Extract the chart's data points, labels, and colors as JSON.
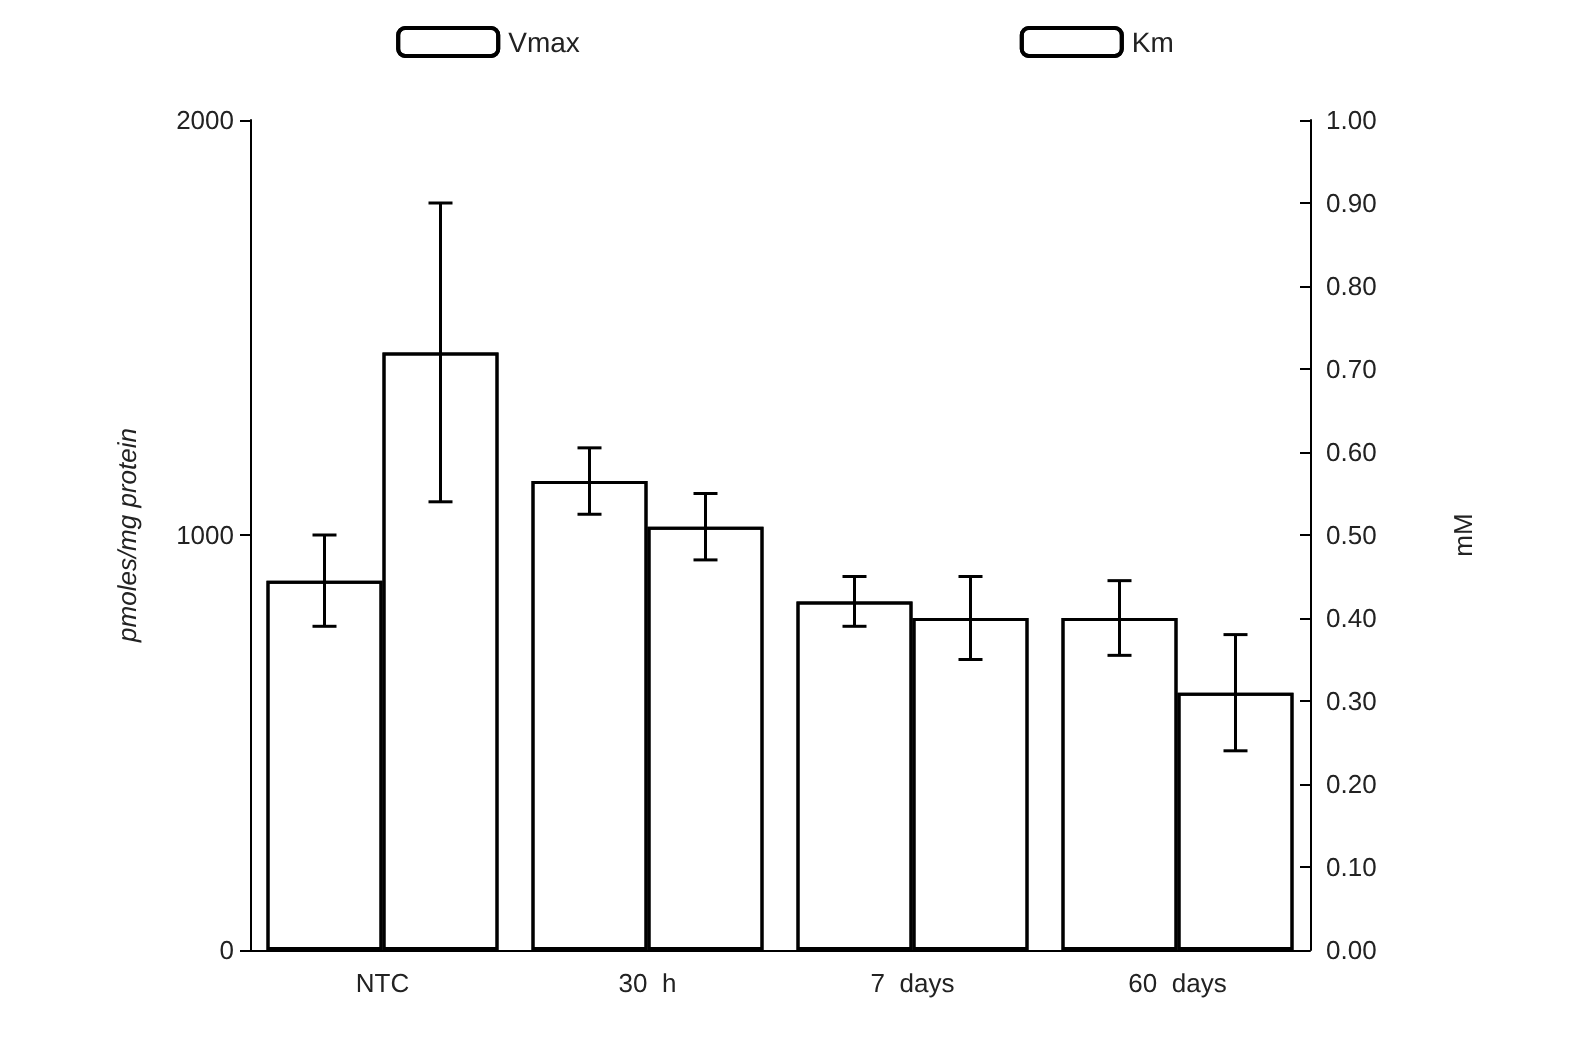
{
  "chart_data": {
    "type": "bar",
    "ylabel": "pmoles/mg protein",
    "y2label": "mM",
    "categories": [
      "NTC",
      "30  h",
      "7  days",
      "60  days"
    ],
    "series": [
      {
        "name": "Vmax",
        "color": "#ffffff",
        "values": [
          890,
          1130,
          840,
          800
        ],
        "errors": [
          110,
          80,
          60,
          90
        ]
      },
      {
        "name": "Km",
        "color": "#ffffff",
        "axis": "y2",
        "values": [
          0.72,
          0.51,
          0.4,
          0.31
        ],
        "errors": [
          0.18,
          0.04,
          0.05,
          0.07
        ]
      }
    ],
    "ylim": [
      0,
      2000
    ],
    "yticks": [
      0,
      1000,
      2000
    ],
    "y2lim": [
      0,
      1
    ],
    "y2ticks": [
      {
        "value": 0,
        "label": "0.00"
      },
      {
        "value": 0.1,
        "label": "0.10"
      },
      {
        "value": 0.2,
        "label": "0.20"
      },
      {
        "value": 0.3,
        "label": "0.30"
      },
      {
        "value": 0.4,
        "label": "0.40"
      },
      {
        "value": 0.5,
        "label": "0.50"
      },
      {
        "value": 0.6,
        "label": "0.60"
      },
      {
        "value": 0.7,
        "label": "0.70"
      },
      {
        "value": 0.8,
        "label": "0.80"
      },
      {
        "value": 0.9,
        "label": "0.90"
      },
      {
        "value": 1,
        "label": "1.00"
      }
    ],
    "legend": "top",
    "grid": false
  }
}
